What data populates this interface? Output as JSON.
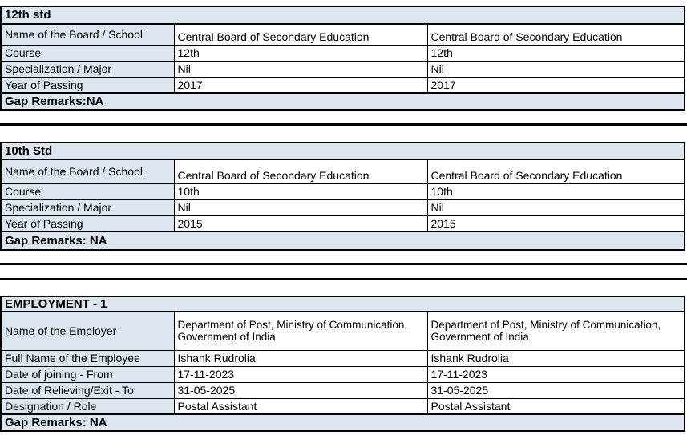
{
  "colors": {
    "cell_fill": "#dce6f1",
    "border": "#000000",
    "background": "#ffffff",
    "text": "#000000"
  },
  "sections": [
    {
      "title": "12th std",
      "rows": [
        {
          "label": "Name of the Board / School",
          "value1": "Central Board of Secondary Education",
          "value2": "Central Board of Secondary Education"
        },
        {
          "label": "Course",
          "value1": "12th",
          "value2": "12th"
        },
        {
          "label": "Specialization / Major",
          "value1": "Nil",
          "value2": "Nil"
        },
        {
          "label": "Year of Passing",
          "value1": "2017",
          "value2": "2017"
        }
      ],
      "footer": "Gap Remarks:NA"
    },
    {
      "title": "10th Std",
      "rows": [
        {
          "label": "Name of the Board / School",
          "value1": "Central Board of Secondary Education",
          "value2": "Central Board of Secondary Education"
        },
        {
          "label": "Course",
          "value1": "10th",
          "value2": "10th"
        },
        {
          "label": "Specialization / Major",
          "value1": "Nil",
          "value2": "Nil"
        },
        {
          "label": "Year of Passing",
          "value1": "2015",
          "value2": "2015"
        }
      ],
      "footer": "Gap Remarks: NA"
    },
    {
      "title": "EMPLOYMENT - 1",
      "rows": [
        {
          "label": "Name of the Employer",
          "value1": "Department of Post, Ministry of Communication, Government of India",
          "value2": "Department of Post, Ministry of Communication, Government of India"
        },
        {
          "label": "Full Name of the Employee",
          "value1": "Ishank Rudrolia",
          "value2": "Ishank Rudrolia"
        },
        {
          "label": "Date of joining - From",
          "value1": "17-11-2023",
          "value2": "17-11-2023"
        },
        {
          "label": "Date of Relieving/Exit - To",
          "value1": "31-05-2025",
          "value2": "31-05-2025"
        },
        {
          "label": "Designation / Role",
          "value1": "Postal Assistant",
          "value2": "Postal Assistant"
        }
      ],
      "footer": "Gap Remarks: NA"
    }
  ]
}
